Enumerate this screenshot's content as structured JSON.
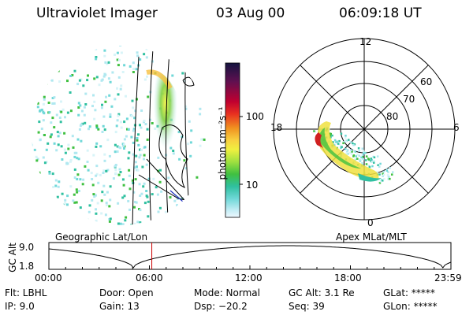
{
  "header": {
    "instrument": "Ultraviolet Imager",
    "date": "03 Aug 00",
    "time": "06:09:18 UT"
  },
  "colorbar": {
    "unit_label": "photon cm⁻²s⁻¹",
    "ticks": [
      "100",
      "10"
    ],
    "colors": [
      "#1a1a4a",
      "#5a1050",
      "#b00030",
      "#e02020",
      "#f08020",
      "#f8c040",
      "#f0f040",
      "#b0e040",
      "#40c040",
      "#30c0a0",
      "#60d0d0",
      "#b0e8f0",
      "#e8f8ff"
    ]
  },
  "polar": {
    "mlt_labels": {
      "top": "12",
      "left": "18",
      "right": "6",
      "bottom": "0"
    },
    "lat_labels": [
      "60",
      "70",
      "80"
    ]
  },
  "orbit_plot": {
    "left_title": "Geographic Lat/Lon",
    "right_title": "Apex MLat/MLT",
    "ylabel": "GC Alt",
    "ytick_top": "9.0",
    "ytick_bottom": "1.8",
    "xticks": [
      "00:00",
      "06:00",
      "12:00",
      "18:00",
      "23:59"
    ],
    "current_time_fraction": 0.256,
    "marker_color": "#cc0000"
  },
  "params": {
    "filter": "Flt: LBHL",
    "ip": "IP:  9.0",
    "door": "Door: Open",
    "gain": "Gain: 13",
    "mode": "Mode: Normal",
    "dsp": "Dsp:  −20.2",
    "gc_alt": "GC Alt: 3.1 Re",
    "seq": "Seq: 39",
    "glat": "GLat: *****",
    "glon": "GLon: *****"
  }
}
